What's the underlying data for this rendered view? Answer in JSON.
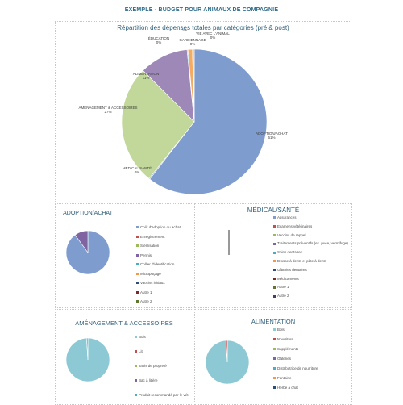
{
  "page_title": "EXEMPLE - BUDGET POUR ANIMAUX DE COMPAGNIE",
  "chart_data": [
    {
      "type": "pie",
      "title": "Répartition des dépenses totales par catégories (pré & post)",
      "labels": [
        {
          "text": "ADOPTION/ACHAT",
          "pct": "61%",
          "color": "#7f9ccf"
        },
        {
          "text": "MÉDICAL/SANTÉ",
          "pct": "0%",
          "color": "#6f8fc4"
        },
        {
          "text": "AMÉNAGEMENT & ACCESSOIRES",
          "pct": "27%",
          "color": "#c1d89a"
        },
        {
          "text": "ALIMENTATION",
          "pct": "11%",
          "color": "#9d88b8"
        },
        {
          "text": "ÉDUCATION",
          "pct": "0%",
          "color": "#83c3cf"
        },
        {
          "text": "",
          "pct": "1%",
          "color": "#f3ac62"
        },
        {
          "text": "GARDIENNAGE",
          "pct": "0%",
          "color": "#8aa8d9"
        },
        {
          "text": "VIE AVEC L'ANIMAL",
          "pct": "0%",
          "color": "#d99694"
        }
      ],
      "values": [
        61,
        0.2,
        27,
        11,
        0.2,
        1,
        0.2,
        0.2
      ]
    },
    {
      "type": "pie",
      "title": "ADOPTION/ACHAT",
      "legend": [
        {
          "text": "Coût d'adoption ou achat",
          "color": "#7f9ccf"
        },
        {
          "text": "Enregistrement",
          "color": "#c0504d"
        },
        {
          "text": "Stérilisation",
          "color": "#9bbb59"
        },
        {
          "text": "Permis",
          "color": "#8064a2"
        },
        {
          "text": "Collier d'identification",
          "color": "#4bacc6"
        },
        {
          "text": "Micropuçage",
          "color": "#f79646"
        },
        {
          "text": "Vaccins initiaux",
          "color": "#2c4d75"
        },
        {
          "text": "Autre 1",
          "color": "#772c2a"
        },
        {
          "text": "Autre 2",
          "color": "#5f7530"
        }
      ],
      "values": [
        90,
        0,
        0,
        10,
        0,
        0,
        0,
        0,
        0
      ]
    },
    {
      "type": "pie",
      "title": "MÉDICAL/SANTÉ",
      "legend": [
        {
          "text": "Assurances",
          "color": "#7f9ccf"
        },
        {
          "text": "Examens vétérinaires",
          "color": "#c0504d"
        },
        {
          "text": "Vaccins de rappel",
          "color": "#9bbb59"
        },
        {
          "text": "Traitements préventifs (ex. puce, vermifuge)",
          "color": "#8064a2"
        },
        {
          "text": "Soins dentaires",
          "color": "#4bacc6"
        },
        {
          "text": "Brosse à dents et pâte à dents",
          "color": "#f79646"
        },
        {
          "text": "Gâteries dentaires",
          "color": "#2c4d75"
        },
        {
          "text": "Médicaments",
          "color": "#772c2a"
        },
        {
          "text": "Autre 1",
          "color": "#5f7530"
        },
        {
          "text": "Autre 2",
          "color": "#4d3b62"
        }
      ],
      "values": [
        0,
        0,
        0,
        0,
        0,
        0,
        0,
        0,
        0,
        0
      ]
    },
    {
      "type": "pie",
      "title": "AMÉNAGEMENT & ACCESSOIRES",
      "legend": [
        {
          "text": "Bols",
          "color": "#8cc9d4"
        },
        {
          "text": "Lit",
          "color": "#c0504d"
        },
        {
          "text": "Tapis de propreté",
          "color": "#9bbb59"
        },
        {
          "text": "Bac à litière",
          "color": "#8064a2"
        },
        {
          "text": "Produit recommandé par le vét.",
          "color": "#4bacc6"
        }
      ],
      "values": [
        99,
        0,
        0,
        0,
        1
      ]
    },
    {
      "type": "pie",
      "title": "ALIMENTATION",
      "legend": [
        {
          "text": "Bols",
          "color": "#8cc9d4"
        },
        {
          "text": "Nourriture",
          "color": "#c0504d"
        },
        {
          "text": "Suppléments",
          "color": "#9bbb59"
        },
        {
          "text": "Gâteries",
          "color": "#8064a2"
        },
        {
          "text": "Distributrice de nourriture",
          "color": "#4bacc6"
        },
        {
          "text": "Fontaine",
          "color": "#f79646"
        },
        {
          "text": "Herbe à chat",
          "color": "#2c4d75"
        }
      ],
      "values": [
        99,
        1,
        0,
        0,
        0,
        0,
        0
      ]
    }
  ]
}
